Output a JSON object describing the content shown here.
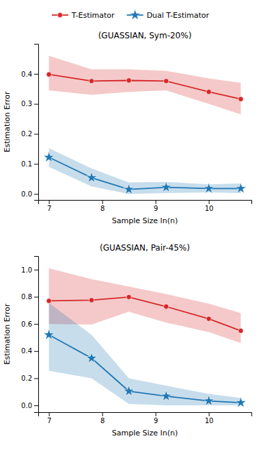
{
  "chart_data": [
    {
      "type": "line",
      "title": "(GUASSIAN, Sym-20%)",
      "x_label": "Sample Size ln(n)",
      "y_label": "Estimation Error",
      "legend": "top",
      "x": [
        7.0,
        7.8,
        8.5,
        9.2,
        10.0,
        10.6
      ],
      "xlim": [
        6.8,
        10.8
      ],
      "xticks": [
        7,
        8,
        9,
        10
      ],
      "ylim": [
        -0.02,
        0.5
      ],
      "yticks": [
        {
          "value": 0.0,
          "label": "0.0"
        },
        0.1,
        0.2,
        0.3,
        0.4
      ],
      "series": [
        {
          "name": "T-Estimator",
          "color": "#d62728",
          "marker": "circle",
          "values": [
            0.398,
            0.376,
            0.378,
            0.376,
            0.34,
            0.316
          ],
          "lower": [
            0.345,
            0.33,
            0.34,
            0.345,
            0.3,
            0.265
          ],
          "upper": [
            0.46,
            0.415,
            0.415,
            0.41,
            0.385,
            0.37
          ]
        },
        {
          "name": "Dual T-Estimator",
          "color": "#1f77b4",
          "marker": "star",
          "values": [
            0.122,
            0.054,
            0.015,
            0.022,
            0.018,
            0.018
          ],
          "lower": [
            0.09,
            0.025,
            0.0,
            0.003,
            0.005,
            0.003
          ],
          "upper": [
            0.152,
            0.085,
            0.038,
            0.04,
            0.032,
            0.035
          ]
        }
      ]
    },
    {
      "type": "line",
      "title": "(GUASSIAN, Pair-45%)",
      "x_label": "Sample Size ln(n)",
      "y_label": "Estimation Error",
      "x": [
        7.0,
        7.8,
        8.5,
        9.2,
        10.0,
        10.6
      ],
      "xlim": [
        6.8,
        10.8
      ],
      "xticks": [
        7,
        8,
        9,
        10
      ],
      "ylim": [
        -0.05,
        1.1
      ],
      "yticks": [
        {
          "value": 0.0,
          "label": "0.0"
        },
        0.2,
        0.4,
        0.6,
        0.8,
        {
          "value": 1.0,
          "label": "1.0"
        }
      ],
      "series": [
        {
          "color": "#d62728",
          "marker": "circle",
          "values": [
            0.77,
            0.775,
            0.798,
            0.728,
            0.638,
            0.55
          ],
          "lower": [
            0.6,
            0.595,
            0.69,
            0.61,
            0.54,
            0.46
          ],
          "upper": [
            1.01,
            0.93,
            0.875,
            0.82,
            0.75,
            0.68
          ]
        },
        {
          "color": "#1f77b4",
          "marker": "star",
          "values": [
            0.52,
            0.348,
            0.105,
            0.068,
            0.033,
            0.02
          ],
          "lower": [
            0.255,
            0.2,
            0.01,
            0.0,
            0.0,
            0.0
          ],
          "upper": [
            0.755,
            0.52,
            0.2,
            0.145,
            0.085,
            0.055
          ]
        }
      ]
    }
  ]
}
